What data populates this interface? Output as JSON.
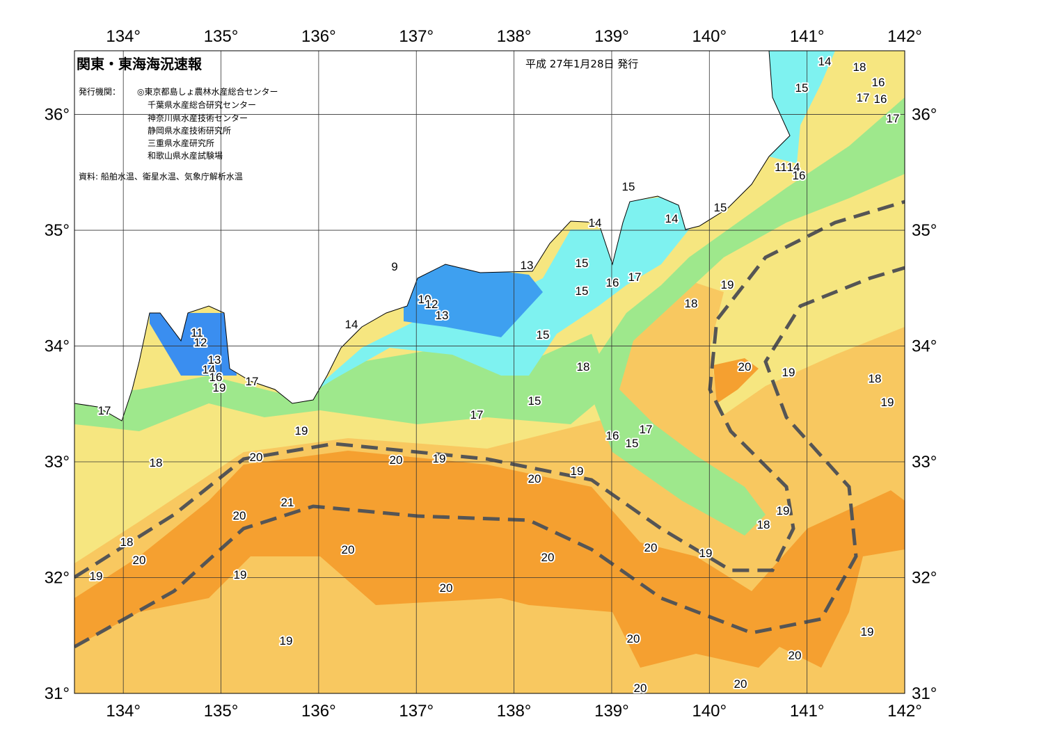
{
  "header": {
    "title": "関東・東海海況速報",
    "date": "平成 27年1月28日 発行",
    "agency_label": "発行機関：",
    "agencies": [
      "◎東京都島しょ農林水産総合センター",
      "千葉県水産総合研究センター",
      "神奈川県水産技術センター",
      "静岡県水産技術研究所",
      "三重県水産研究所",
      "和歌山県水産試験場"
    ],
    "source": "資料: 船舶水温、衛星水温、気象庁解析水温"
  },
  "map": {
    "lonlim": [
      133.5,
      142
    ],
    "latlim": [
      31,
      36.55
    ],
    "lon_ticks": [
      {
        "value": 134,
        "label": "134°"
      },
      {
        "value": 135,
        "label": "135°"
      },
      {
        "value": 136,
        "label": "136°"
      },
      {
        "value": 137,
        "label": "137°"
      },
      {
        "value": 138,
        "label": "138°"
      },
      {
        "value": 139,
        "label": "139°"
      },
      {
        "value": 140,
        "label": "140°"
      },
      {
        "value": 141,
        "label": "141°"
      },
      {
        "value": 142,
        "label": "142°"
      }
    ],
    "lat_ticks": [
      {
        "value": 31,
        "label": "31°"
      },
      {
        "value": 32,
        "label": "32°"
      },
      {
        "value": 33,
        "label": "33°"
      },
      {
        "value": 34,
        "label": "34°"
      },
      {
        "value": 35,
        "label": "35°"
      },
      {
        "value": 36,
        "label": "36°"
      }
    ],
    "contour_labels": [
      14,
      18,
      16,
      15,
      17,
      16,
      17,
      11,
      14,
      16,
      15,
      15,
      14,
      14,
      9,
      13,
      15,
      16,
      17,
      15,
      18,
      19,
      10,
      12,
      13,
      11,
      12,
      14,
      15,
      18,
      20,
      19,
      18,
      13,
      14,
      16,
      19,
      17,
      19,
      17,
      15,
      17,
      19,
      17,
      16,
      15,
      18,
      20,
      20,
      19,
      19,
      20,
      21,
      20,
      19,
      18,
      18,
      20,
      20,
      19,
      20,
      20,
      19,
      19,
      20,
      19,
      20,
      19,
      20,
      20,
      20
    ]
  }
}
